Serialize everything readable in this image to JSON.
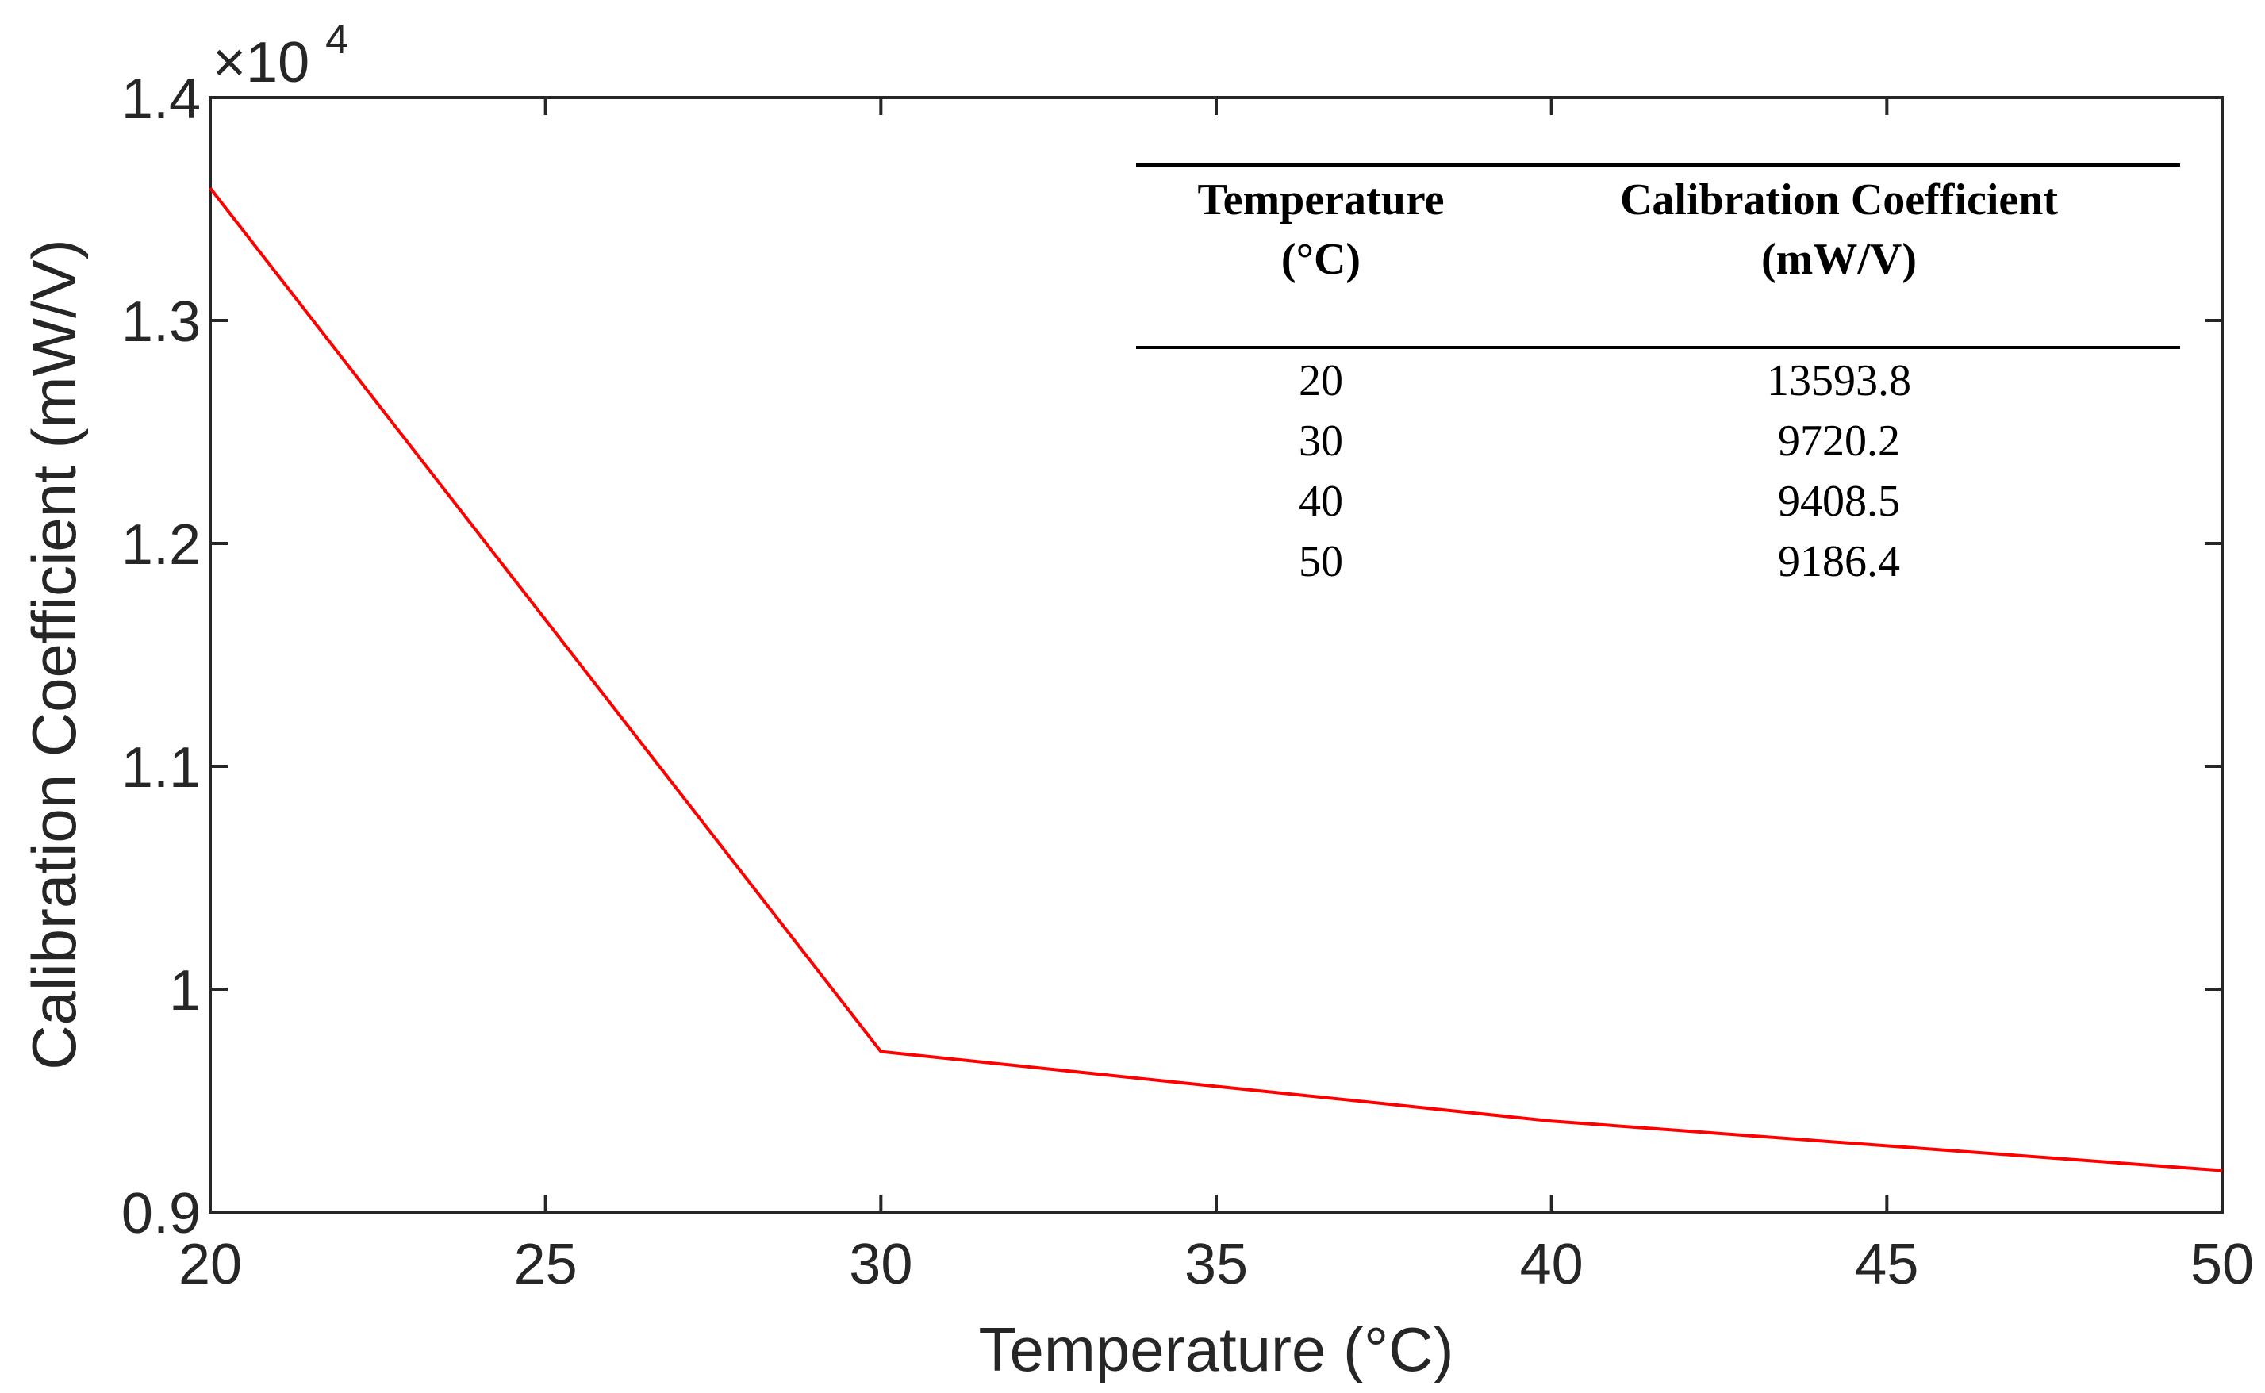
{
  "chart_data": {
    "type": "line",
    "title": "",
    "xlabel": "Temperature (°C)",
    "ylabel": "Calibration Coefficient (mW/V)",
    "y_exponent_base": "×10",
    "y_exponent_power": "4",
    "xlim": [
      20,
      50
    ],
    "ylim": [
      0.9,
      1.4
    ],
    "x_ticks": [
      20,
      25,
      30,
      35,
      40,
      45,
      50
    ],
    "y_ticks": [
      0.9,
      1,
      1.1,
      1.2,
      1.3,
      1.4
    ],
    "y_tick_labels": [
      "0.9",
      "1",
      "1.1",
      "1.2",
      "1.3",
      "1.4"
    ],
    "grid": false,
    "series": [
      {
        "name": "Calibration Coefficient",
        "color": "#ff0000",
        "x": [
          20,
          30,
          40,
          50
        ],
        "y": [
          1.35938,
          0.97202,
          0.94085,
          0.91864
        ]
      }
    ]
  },
  "table": {
    "headers": [
      [
        "Temperature",
        "(°C)"
      ],
      [
        "Calibration Coefficient",
        "(mW/V)"
      ]
    ],
    "rows": [
      [
        "20",
        "13593.8"
      ],
      [
        "30",
        "9720.2"
      ],
      [
        "40",
        "9408.5"
      ],
      [
        "50",
        "9186.4"
      ]
    ]
  }
}
